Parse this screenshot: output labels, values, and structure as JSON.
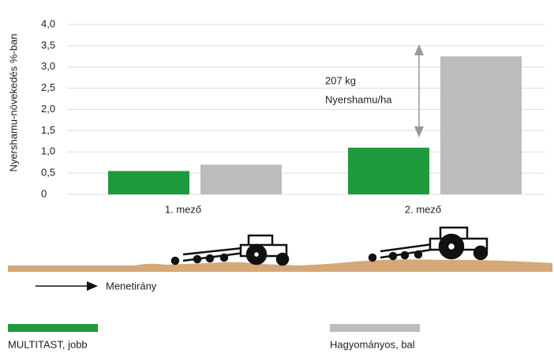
{
  "chart_data": {
    "type": "bar",
    "y_label": "Nyershamu-növekedés %-ban",
    "categories": [
      "1. mező",
      "2. mező"
    ],
    "series": [
      {
        "name": "MULTITAST, jobb",
        "color": "#1e9a3c",
        "values": [
          0.55,
          1.1
        ]
      },
      {
        "name": "Hagyományos, bal",
        "color": "#bcbcbc",
        "values": [
          0.7,
          3.25
        ]
      }
    ],
    "ylim": [
      0,
      4
    ],
    "yticks": [
      0,
      {
        "value": 0.5,
        "label": "0,5"
      },
      {
        "value": 1,
        "label": "1,0"
      },
      {
        "value": 1.5,
        "label": "1,5"
      },
      {
        "value": 2,
        "label": "2,0"
      },
      {
        "value": 2.5,
        "label": "2,5"
      },
      {
        "value": 3,
        "label": "3,0"
      },
      {
        "value": 3.5,
        "label": "3,5"
      },
      {
        "value": 4,
        "label": "4,0"
      }
    ],
    "grid": true,
    "annotations": [
      "207 kg",
      "Nyershamu/ha"
    ],
    "direction_label": "Menetirány"
  }
}
